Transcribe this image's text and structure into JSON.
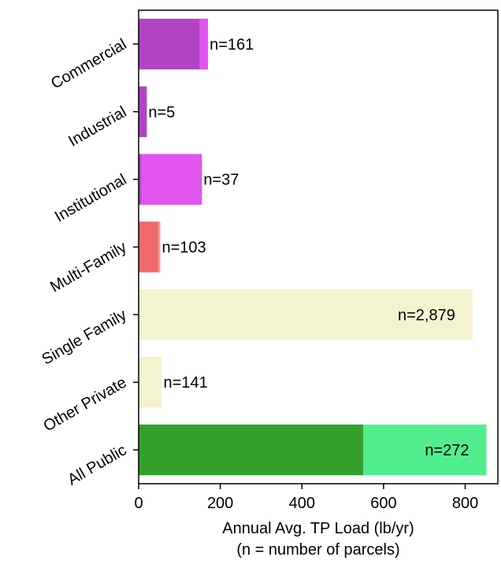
{
  "chart_data": {
    "type": "bar",
    "orientation": "horizontal",
    "stacked": true,
    "categories": [
      "Commercial",
      "Industrial",
      "Institutional",
      "Multi-Family",
      "Single Family",
      "Other Private",
      "All Public"
    ],
    "series": [
      {
        "values": [
          150,
          20,
          7,
          48,
          0,
          0,
          550
        ],
        "colors": [
          "#b044c4",
          "#b044c4",
          "#b044c4",
          "#f06a6a",
          "#f3f3cf",
          "#f3f3cf",
          "#33a02c"
        ]
      },
      {
        "values": [
          20,
          0,
          148,
          5,
          818,
          57,
          302
        ],
        "colors": [
          "#e055ee",
          "#e055ee",
          "#e055ee",
          "#f79a9a",
          "#f3f3cf",
          "#f3f3cf",
          "#52ee8e"
        ]
      }
    ],
    "data_labels": [
      "n=161",
      "n=5",
      "n=37",
      "n=103",
      "n=2,879",
      "n=141",
      "n=272"
    ],
    "data_label_position": [
      "outside",
      "outside",
      "outside",
      "outside",
      "inside",
      "outside",
      "inside"
    ],
    "xlabel_lines": [
      "Annual Avg. TP Load (lb/yr)",
      "(n = number of parcels)"
    ],
    "xlim": [
      0,
      880
    ],
    "xticks": [
      0,
      200,
      400,
      600,
      800
    ],
    "grid": false
  }
}
